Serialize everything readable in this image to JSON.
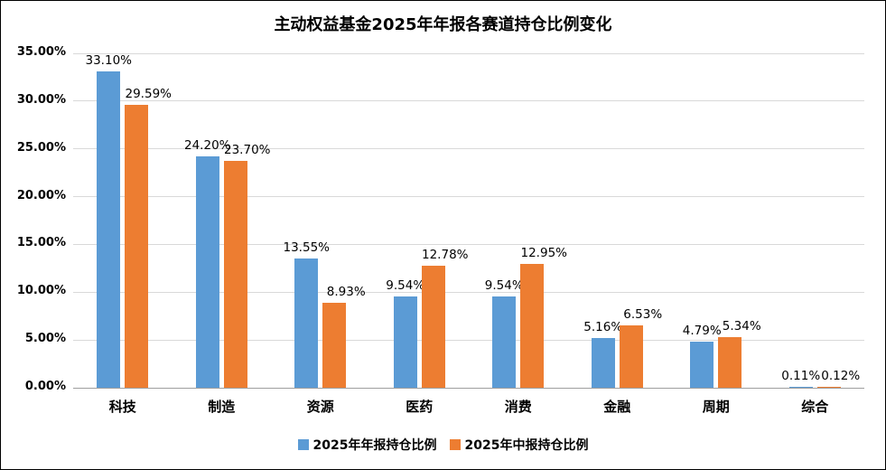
{
  "chart_data": {
    "type": "bar",
    "title": "主动权益基金2025年年报各赛道持仓比例变化",
    "categories": [
      "科技",
      "制造",
      "资源",
      "医药",
      "消费",
      "金融",
      "周期",
      "综合"
    ],
    "series": [
      {
        "name": "2025年年报持仓比例",
        "color": "#5B9BD5",
        "values": [
          33.1,
          24.2,
          13.55,
          9.54,
          9.54,
          5.16,
          4.79,
          0.11
        ]
      },
      {
        "name": "2025年中报持仓比例",
        "color": "#ED7D31",
        "values": [
          29.59,
          23.7,
          8.93,
          12.78,
          12.95,
          6.53,
          5.34,
          0.12
        ]
      }
    ],
    "labels": [
      [
        "33.10%",
        "24.20%",
        "13.55%",
        "9.54%",
        "9.54%",
        "5.16%",
        "4.79%",
        "0.11%"
      ],
      [
        "29.59%",
        "23.70%",
        "8.93%",
        "12.78%",
        "12.95%",
        "6.53%",
        "5.34%",
        "0.12%"
      ]
    ],
    "ylim": [
      0,
      35
    ],
    "ytick_step": 5,
    "yticks": [
      "0.00%",
      "5.00%",
      "10.00%",
      "15.00%",
      "20.00%",
      "25.00%",
      "30.00%",
      "35.00%"
    ],
    "grid": true,
    "legend_position": "bottom"
  }
}
